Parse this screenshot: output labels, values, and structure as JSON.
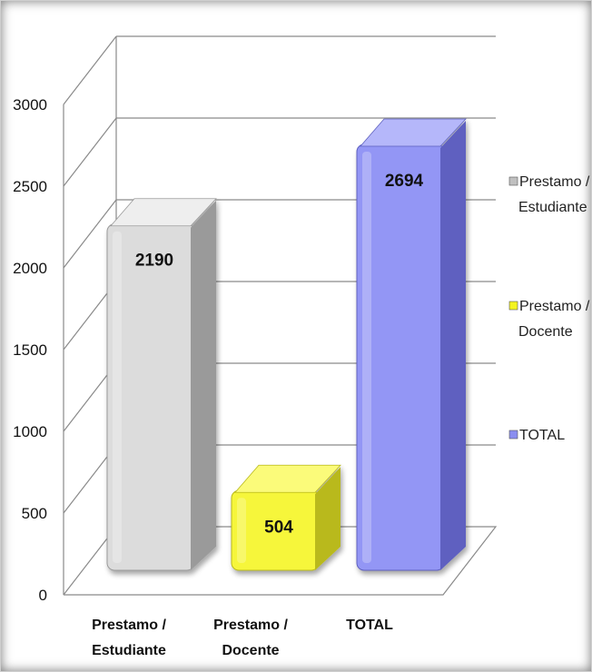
{
  "chart_data": {
    "type": "bar",
    "categories": [
      "Prestamo / Estudiante",
      "Prestamo / Docente",
      "TOTAL"
    ],
    "category_lines": [
      [
        "Prestamo /",
        "Estudiante"
      ],
      [
        "Prestamo /",
        "Docente"
      ],
      [
        "TOTAL"
      ]
    ],
    "values": [
      2190,
      504,
      2694
    ],
    "data_labels": [
      "2190",
      "504",
      "2694"
    ],
    "ylim": [
      0,
      3000
    ],
    "yticks": [
      "0",
      "500",
      "1000",
      "1500",
      "2000",
      "2500",
      "3000"
    ],
    "ytick_values": [
      0,
      500,
      1000,
      1500,
      2000,
      2500,
      3000
    ],
    "grid": true,
    "three_d": true,
    "legend": {
      "placement": "right",
      "entries": [
        {
          "lines": [
            "Prestamo /",
            "Estudiante"
          ],
          "color": "#c0c0c0"
        },
        {
          "lines": [
            "Prestamo /",
            "Docente"
          ],
          "color": "#f4f420"
        },
        {
          "lines": [
            "TOTAL"
          ],
          "color": "#8a8ef0"
        }
      ]
    },
    "colors": {
      "front": [
        "#dcdcdc",
        "#f6f63a",
        "#9396f5"
      ],
      "side": [
        "#9a9a9a",
        "#b9b91a",
        "#5e61c0"
      ],
      "top": [
        "#eeeeee",
        "#fbfb7a",
        "#b5b7fa"
      ]
    }
  }
}
